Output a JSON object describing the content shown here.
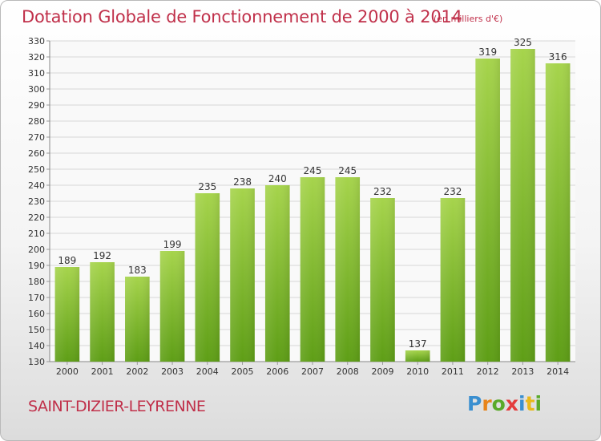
{
  "title": "Dotation Globale de Fonctionnement de 2000 à 2014",
  "subtitle": "(en milliers d'€)",
  "commune": "SAINT-DIZIER-LEYRENNE",
  "logo": {
    "letters": [
      "P",
      "r",
      "o",
      "x",
      "i",
      "t",
      "i"
    ],
    "colors": [
      "#3a8fd0",
      "#e8841a",
      "#5aaa2a",
      "#e43c3c",
      "#3a8fd0",
      "#e8b91a",
      "#5aaa2a"
    ]
  },
  "colors": {
    "bar_light": "#a6d44c",
    "bar_dark": "#5e9e16",
    "grid": "#d8d8d8",
    "text": "#333333",
    "accent": "#c0304a"
  },
  "chart_data": {
    "type": "bar",
    "categories": [
      "2000",
      "2001",
      "2002",
      "2003",
      "2004",
      "2005",
      "2006",
      "2007",
      "2008",
      "2009",
      "2010",
      "2011",
      "2012",
      "2013",
      "2014"
    ],
    "values": [
      189,
      192,
      183,
      199,
      235,
      238,
      240,
      245,
      245,
      232,
      137,
      232,
      319,
      325,
      316
    ],
    "ylim": [
      130,
      330
    ],
    "yticks": [
      130,
      140,
      150,
      160,
      170,
      180,
      190,
      200,
      210,
      220,
      230,
      240,
      250,
      260,
      270,
      280,
      290,
      300,
      310,
      320,
      330
    ],
    "grid": true,
    "data_labels": true
  }
}
